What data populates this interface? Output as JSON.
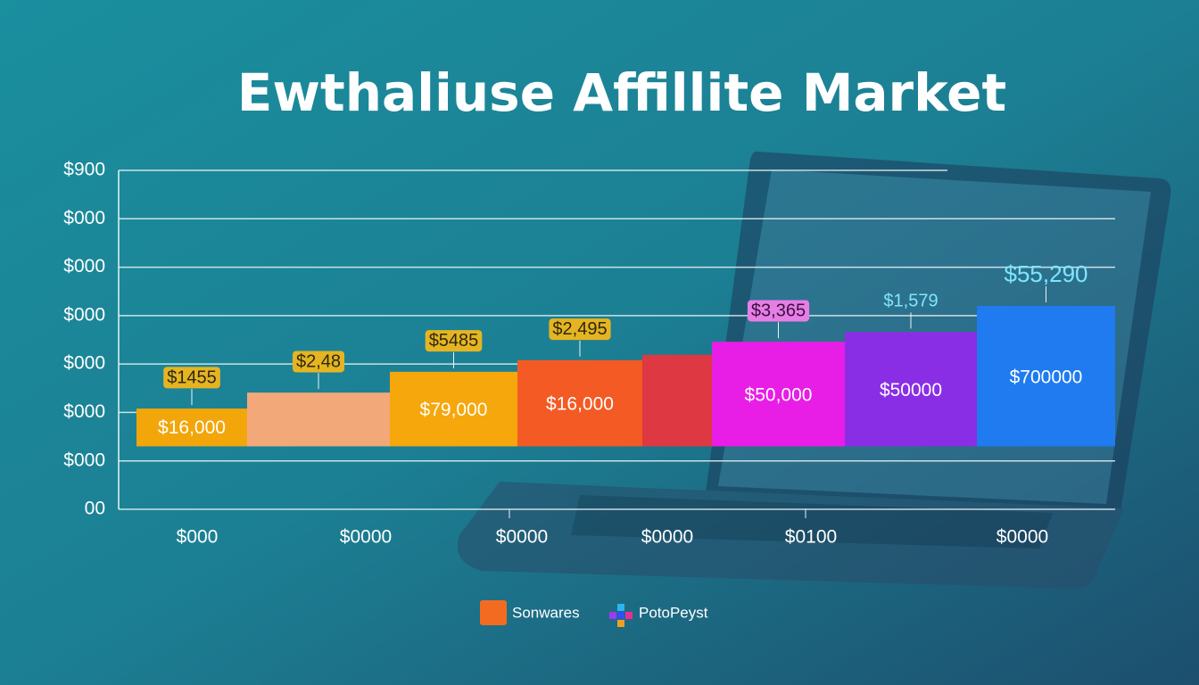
{
  "chart_data": {
    "type": "range-bar",
    "title": "Ewthaliuse Affillite Market",
    "categories": [
      null,
      null,
      null,
      null,
      null,
      null,
      null,
      null
    ],
    "values": [
      2.08,
      2.41,
      2.84,
      3.08,
      3.19,
      3.46,
      3.66,
      4.2
    ],
    "bases": [
      1.3,
      1.3,
      1.3,
      1.3,
      1.3,
      1.3,
      1.3,
      1.3
    ],
    "colors": [
      "#f2a60a",
      "#f3a87a",
      "#f5a70c",
      "#f45a24",
      "#de3842",
      "#e81de6",
      "#8a2ee6",
      "#1f7bef"
    ],
    "top_labels": [
      "$1455",
      "$2,48",
      "$5485",
      "$2,495",
      null,
      "$3,365",
      "$1,579",
      "$55,290"
    ],
    "inner_labels": [
      "$16,000",
      null,
      "$79,000",
      "$16,000",
      null,
      "$50,000",
      "$50000",
      "$700000"
    ],
    "x_axis_labels": [
      "$000",
      "$0000",
      "$0000",
      "$0000",
      "$0100",
      "$0000"
    ],
    "ylim": [
      0,
      7
    ],
    "yticks": [
      {
        "value": 0,
        "label": "00"
      },
      {
        "value": 1,
        "label": "$000"
      },
      {
        "value": 2,
        "label": "$000"
      },
      {
        "value": 3,
        "label": "$000"
      },
      {
        "value": 4,
        "label": "$000"
      },
      {
        "value": 5,
        "label": "$000"
      },
      {
        "value": 6,
        "label": "$000"
      },
      {
        "value": 7,
        "label": "$900"
      }
    ],
    "grid": true,
    "legend": [
      {
        "label": "Sonwares",
        "color": "#f26b21"
      },
      {
        "label": "PotoPeyst"
      }
    ]
  }
}
